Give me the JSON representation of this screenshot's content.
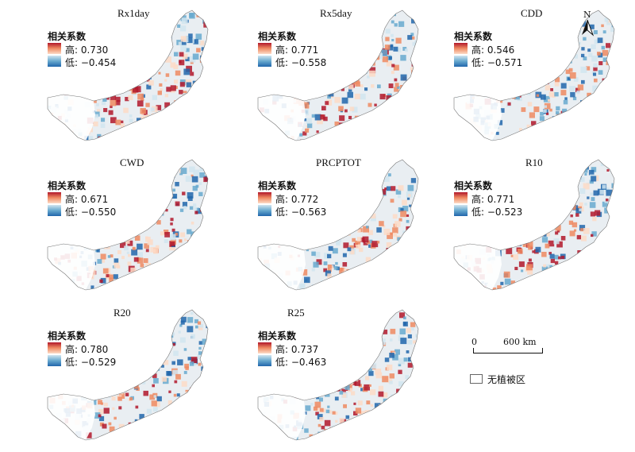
{
  "legend_title": "相关系数",
  "high_prefix": "高: ",
  "low_prefix": "低: ",
  "colors": {
    "high": "#b2182b",
    "mid_high": "#ef8a62",
    "mid_low": "#67a9cf",
    "low": "#2166ac",
    "no_vegetation": "#ffffff"
  },
  "panels": [
    {
      "title": "Rx1day",
      "high": "0.730",
      "low": "−0.454"
    },
    {
      "title": "Rx5day",
      "high": "0.771",
      "low": "−0.558"
    },
    {
      "title": "CDD",
      "high": "0.546",
      "low": "−0.571"
    },
    {
      "title": "CWD",
      "high": "0.671",
      "low": "−0.550"
    },
    {
      "title": "PRCPTOT",
      "high": "0.772",
      "low": "−0.563"
    },
    {
      "title": "R10",
      "high": "0.771",
      "low": "−0.523"
    },
    {
      "title": "R20",
      "high": "0.780",
      "low": "−0.529"
    },
    {
      "title": "R25",
      "high": "0.737",
      "low": "−0.463"
    }
  ],
  "north_label": "N",
  "scale": {
    "zero": "0",
    "distance": "600 km"
  },
  "no_vegetation_label": "无植被区"
}
